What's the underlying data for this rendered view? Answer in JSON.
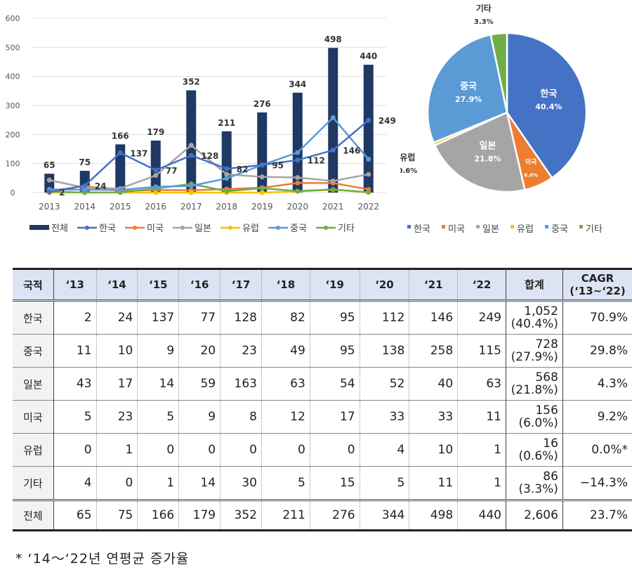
{
  "chart_data": [
    {
      "type": "bar+line",
      "categories": [
        "2013",
        "2014",
        "2015",
        "2016",
        "2017",
        "2018",
        "2019",
        "2020",
        "2021",
        "2022"
      ],
      "ylim": [
        0,
        600
      ],
      "yticks": [
        0,
        100,
        200,
        300,
        400,
        500,
        600
      ],
      "grid": true,
      "legend": "bottom",
      "series": [
        {
          "name": "전체",
          "kind": "bar",
          "color": "#203864",
          "values": [
            65,
            75,
            166,
            179,
            352,
            211,
            276,
            344,
            498,
            440
          ],
          "labels": true
        },
        {
          "name": "한국",
          "kind": "line",
          "color": "#4472c4",
          "values": [
            2,
            24,
            137,
            77,
            128,
            82,
            95,
            112,
            146,
            249
          ],
          "labels": true
        },
        {
          "name": "미국",
          "kind": "line",
          "color": "#ed7d31",
          "values": [
            5,
            23,
            5,
            9,
            8,
            12,
            17,
            33,
            33,
            11
          ]
        },
        {
          "name": "일본",
          "kind": "line",
          "color": "#a5a5a5",
          "values": [
            43,
            17,
            14,
            59,
            163,
            63,
            54,
            52,
            40,
            63
          ]
        },
        {
          "name": "유럽",
          "kind": "line",
          "color": "#ffc000",
          "values": [
            0,
            1,
            0,
            0,
            0,
            0,
            0,
            4,
            10,
            1
          ]
        },
        {
          "name": "중국",
          "kind": "line",
          "color": "#5b9bd5",
          "values": [
            11,
            10,
            9,
            20,
            23,
            49,
            95,
            138,
            258,
            115
          ]
        },
        {
          "name": "기타",
          "kind": "line",
          "color": "#70ad47",
          "values": [
            4,
            0,
            1,
            14,
            30,
            5,
            15,
            5,
            11,
            1
          ]
        }
      ]
    },
    {
      "type": "pie",
      "legend": "bottom",
      "slices": [
        {
          "name": "한국",
          "value": 40.4,
          "label": "40.4%",
          "color": "#4472c4"
        },
        {
          "name": "미국",
          "value": 6.0,
          "label": "6.0%",
          "color": "#ed7d31"
        },
        {
          "name": "일본",
          "value": 21.8,
          "label": "21.8%",
          "color": "#a5a5a5"
        },
        {
          "name": "유럽",
          "value": 0.6,
          "label": "0.6%",
          "color": "#ffc000"
        },
        {
          "name": "중국",
          "value": 27.9,
          "label": "27.9%",
          "color": "#5b9bd5"
        },
        {
          "name": "기타",
          "value": 3.3,
          "label": "3.3%",
          "color": "#70ad47"
        }
      ]
    }
  ],
  "table": {
    "headers": [
      "국적",
      "‘13",
      "‘14",
      "‘15",
      "‘16",
      "‘17",
      "‘18",
      "‘19",
      "‘20",
      "‘21",
      "‘22",
      "합계",
      "CAGR",
      "(‘13~‘22)"
    ],
    "rows": [
      {
        "name": "한국",
        "values": [
          "2",
          "24",
          "137",
          "77",
          "128",
          "82",
          "95",
          "112",
          "146",
          "249"
        ],
        "sum": "1,052",
        "share": "(40.4%)",
        "cagr": "70.9%"
      },
      {
        "name": "중국",
        "values": [
          "11",
          "10",
          "9",
          "20",
          "23",
          "49",
          "95",
          "138",
          "258",
          "115"
        ],
        "sum": "728",
        "share": "(27.9%)",
        "cagr": "29.8%"
      },
      {
        "name": "일본",
        "values": [
          "43",
          "17",
          "14",
          "59",
          "163",
          "63",
          "54",
          "52",
          "40",
          "63"
        ],
        "sum": "568",
        "share": "(21.8%)",
        "cagr": "4.3%"
      },
      {
        "name": "미국",
        "values": [
          "5",
          "23",
          "5",
          "9",
          "8",
          "12",
          "17",
          "33",
          "33",
          "11"
        ],
        "sum": "156",
        "share": "(6.0%)",
        "cagr": "9.2%"
      },
      {
        "name": "유럽",
        "values": [
          "0",
          "1",
          "0",
          "0",
          "0",
          "0",
          "0",
          "4",
          "10",
          "1"
        ],
        "sum": "16",
        "share": "(0.6%)",
        "cagr": "0.0%*"
      },
      {
        "name": "기타",
        "values": [
          "4",
          "0",
          "1",
          "14",
          "30",
          "5",
          "15",
          "5",
          "11",
          "1"
        ],
        "sum": "86",
        "share": "(3.3%)",
        "cagr": "−14.3%"
      }
    ],
    "total": {
      "name": "전체",
      "values": [
        "65",
        "75",
        "166",
        "179",
        "352",
        "211",
        "276",
        "344",
        "498",
        "440"
      ],
      "sum": "2,606",
      "cagr": "23.7%"
    }
  },
  "footnote": "* ‘14～‘22년 연평균 증가율"
}
